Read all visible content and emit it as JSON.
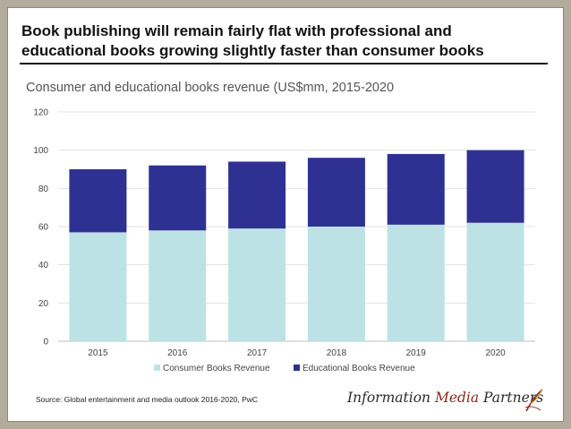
{
  "slide": {
    "headline_line1": "Book publishing will remain fairly flat with professional and",
    "headline_line2": "educational books growing slightly faster than consumer books",
    "source": "Source: Global entertainment and media outlook 2016-2020, PwC",
    "logo": {
      "part1": "Information ",
      "part2": "Media",
      "part3": " Partners",
      "mark_icon": "quill-swirl-icon"
    }
  },
  "chart_data": {
    "type": "bar",
    "stacked": true,
    "title": "Consumer and educational books revenue (US$mm,  2015-2020",
    "xlabel": "",
    "ylabel": "",
    "categories": [
      "2015",
      "2016",
      "2017",
      "2018",
      "2019",
      "2020"
    ],
    "series": [
      {
        "name": "Consumer Books Revenue",
        "color": "#bde2e6",
        "values": [
          57,
          58,
          59,
          60,
          61,
          62
        ]
      },
      {
        "name": "Educational Books Revenue",
        "color": "#2e3192",
        "values": [
          33,
          34,
          35,
          36,
          37,
          38
        ]
      }
    ],
    "ylim": [
      0,
      120
    ],
    "yticks": [
      "0",
      "20",
      "40",
      "60",
      "80",
      "100",
      "120"
    ],
    "grid": true,
    "legend": "bottom"
  }
}
